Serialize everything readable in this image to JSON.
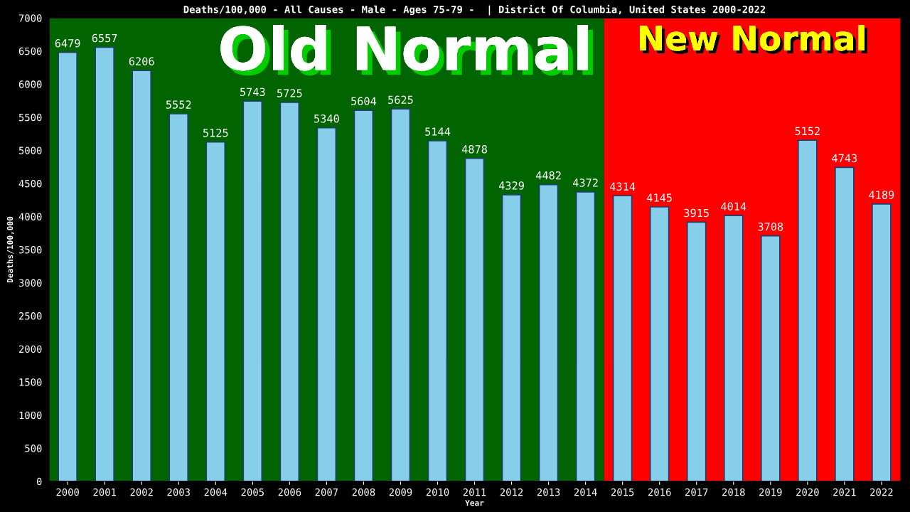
{
  "chart_data": {
    "type": "bar",
    "title": "Deaths/100,000 - All Causes - Male - Ages 75-79 -  | District Of Columbia, United States 2000-2022",
    "xlabel": "Year",
    "ylabel": "Deaths/100,000",
    "categories": [
      "2000",
      "2001",
      "2002",
      "2003",
      "2004",
      "2005",
      "2006",
      "2007",
      "2008",
      "2009",
      "2010",
      "2011",
      "2012",
      "2013",
      "2014",
      "2015",
      "2016",
      "2017",
      "2018",
      "2019",
      "2020",
      "2021",
      "2022"
    ],
    "values": [
      6479,
      6557,
      6206,
      5552,
      5125,
      5743,
      5725,
      5340,
      5604,
      5625,
      5144,
      4878,
      4329,
      4482,
      4372,
      4314,
      4145,
      3915,
      4014,
      3708,
      5152,
      4743,
      4189
    ],
    "color": "#87ceeb",
    "data_labels": true,
    "ylim": [
      0,
      7000
    ],
    "yticks": [
      0,
      500,
      1000,
      1500,
      2000,
      2500,
      3000,
      3500,
      4000,
      4500,
      5000,
      5500,
      6000,
      6500,
      7000
    ],
    "bands": [
      {
        "axis": "x",
        "from": "2000",
        "to": "2014",
        "label": "Old Normal",
        "color": "#006400"
      },
      {
        "axis": "x",
        "from": "2015",
        "to": "2022",
        "label": "New Normal",
        "color": "#ff0000"
      }
    ],
    "grid": false,
    "legend": false
  }
}
